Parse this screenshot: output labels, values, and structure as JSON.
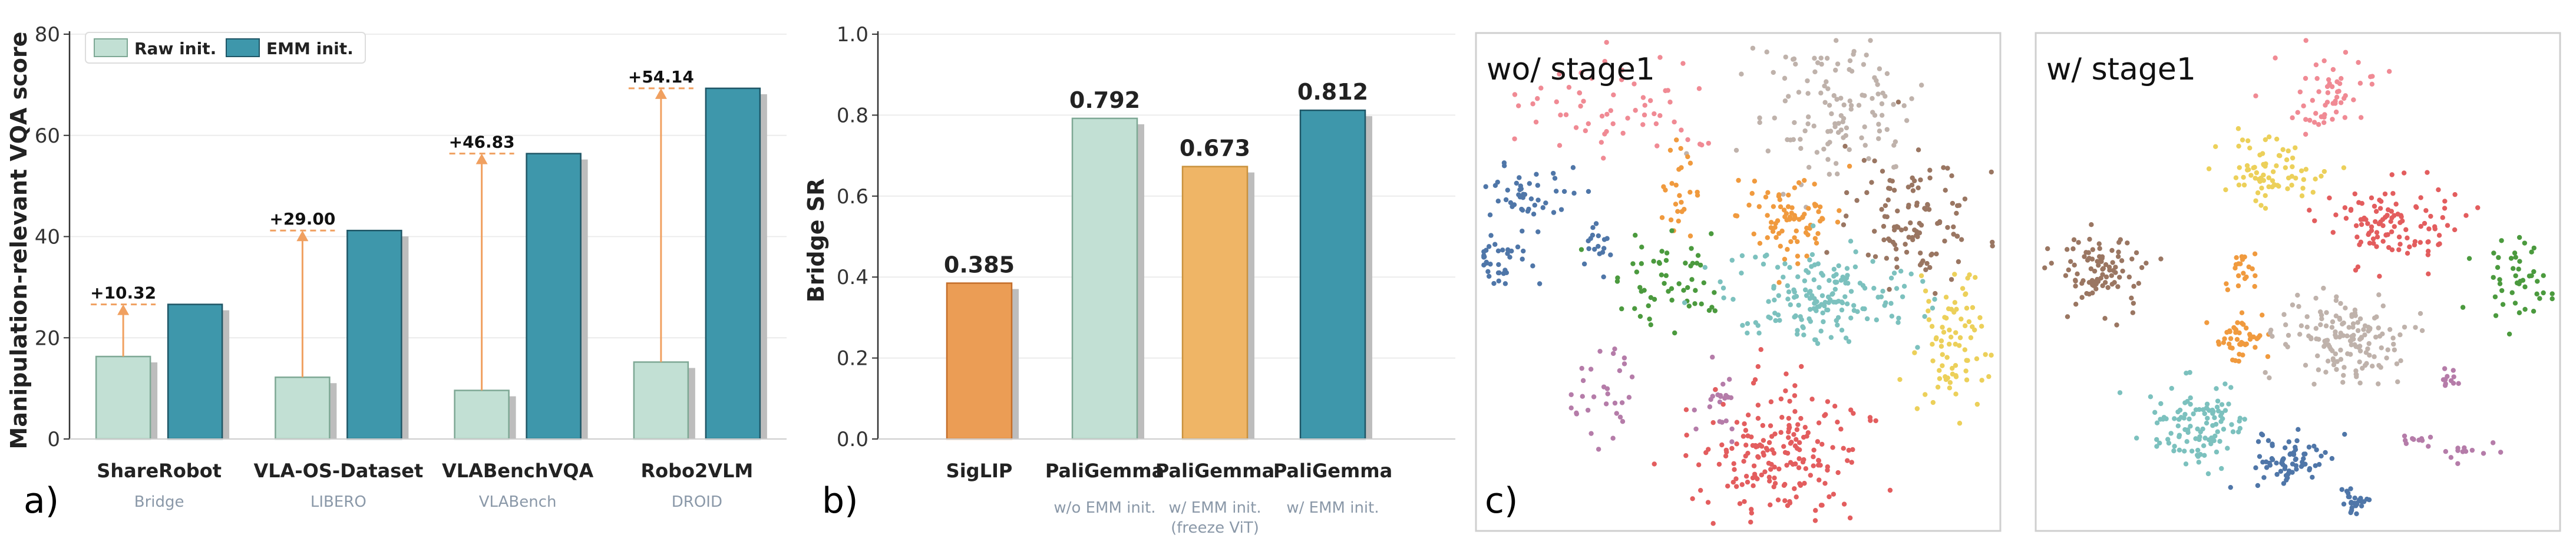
{
  "colors": {
    "raw": "#c2e0d4",
    "raw_edge": "#7ea895",
    "emm": "#3e97ab",
    "emm_edge": "#1f5666",
    "siglip": "#eb9d55",
    "siglip_edge": "#c46e2a",
    "freeze": "#efb566",
    "freeze_edge": "#c9913d",
    "arrow": "#f0a060",
    "shadow": "#bdbdbd"
  },
  "chart_data": [
    {
      "type": "bar",
      "panel_label": "a)",
      "ylabel": "Manipulation-relevant VQA score",
      "ylim": [
        0,
        80
      ],
      "yticks": [
        "0",
        "20",
        "40",
        "60",
        "80"
      ],
      "grid": true,
      "legend": {
        "position": "top-left",
        "entries": [
          "Raw init.",
          "EMM init."
        ]
      },
      "categories": [
        "ShareRobot",
        "VLA-OS-Dataset",
        "VLABenchVQA",
        "Robo2VLM"
      ],
      "subtitles": [
        "Bridge",
        "LIBERO",
        "VLABench",
        "DROID"
      ],
      "series": [
        {
          "name": "Raw init.",
          "values": [
            16.3,
            12.2,
            9.6,
            15.2
          ]
        },
        {
          "name": "EMM init.",
          "values": [
            26.6,
            41.2,
            56.4,
            69.3
          ]
        }
      ],
      "deltas": [
        "+10.32",
        "+29.00",
        "+46.83",
        "+54.14"
      ]
    },
    {
      "type": "bar",
      "panel_label": "b)",
      "ylabel": "Bridge SR",
      "ylim": [
        0,
        1.0
      ],
      "yticks": [
        "0.0",
        "0.2",
        "0.4",
        "0.6",
        "0.8",
        "1.0"
      ],
      "grid": true,
      "categories": [
        "SigLIP",
        "PaliGemma",
        "PaliGemma",
        "PaliGemma"
      ],
      "subtitles": [
        "",
        "w/o EMM init.",
        "w/ EMM init.",
        "w/ EMM init."
      ],
      "subtitles2": [
        "",
        "",
        "(freeze ViT)",
        ""
      ],
      "values": [
        0.385,
        0.792,
        0.673,
        0.812
      ],
      "value_labels": [
        "0.385",
        "0.792",
        "0.673",
        "0.812"
      ]
    },
    {
      "type": "scatter",
      "panel_label": "c)",
      "panels": [
        {
          "title": "wo/ stage1",
          "clusters": [
            {
              "color": "#f08a94",
              "cx": 0.28,
              "cy": 0.15,
              "sx": 0.1,
              "sy": 0.05,
              "n": 60
            },
            {
              "color": "#bfb2ab",
              "cx": 0.68,
              "cy": 0.15,
              "sx": 0.08,
              "sy": 0.08,
              "n": 120
            },
            {
              "color": "#4f76a8",
              "cx": 0.09,
              "cy": 0.33,
              "sx": 0.035,
              "sy": 0.03,
              "n": 45
            },
            {
              "color": "#4f76a8",
              "cx": 0.05,
              "cy": 0.46,
              "sx": 0.035,
              "sy": 0.025,
              "n": 35
            },
            {
              "color": "#4f76a8",
              "cx": 0.23,
              "cy": 0.42,
              "sx": 0.015,
              "sy": 0.03,
              "n": 18
            },
            {
              "color": "#f09a3e",
              "cx": 0.39,
              "cy": 0.32,
              "sx": 0.02,
              "sy": 0.04,
              "n": 25
            },
            {
              "color": "#f09a3e",
              "cx": 0.6,
              "cy": 0.37,
              "sx": 0.05,
              "sy": 0.04,
              "n": 80
            },
            {
              "color": "#4b9a3e",
              "cx": 0.36,
              "cy": 0.48,
              "sx": 0.06,
              "sy": 0.05,
              "n": 55
            },
            {
              "color": "#9a7662",
              "cx": 0.84,
              "cy": 0.38,
              "sx": 0.06,
              "sy": 0.06,
              "n": 110
            },
            {
              "color": "#7cc1be",
              "cx": 0.66,
              "cy": 0.53,
              "sx": 0.09,
              "sy": 0.05,
              "n": 170
            },
            {
              "color": "#ecd05a",
              "cx": 0.9,
              "cy": 0.62,
              "sx": 0.035,
              "sy": 0.07,
              "n": 80
            },
            {
              "color": "#b57ca9",
              "cx": 0.24,
              "cy": 0.73,
              "sx": 0.03,
              "sy": 0.06,
              "n": 30
            },
            {
              "color": "#b57ca9",
              "cx": 0.46,
              "cy": 0.74,
              "sx": 0.02,
              "sy": 0.04,
              "n": 22
            },
            {
              "color": "#e35d5e",
              "cx": 0.58,
              "cy": 0.84,
              "sx": 0.08,
              "sy": 0.065,
              "n": 190
            }
          ]
        },
        {
          "title": "w/ stage1",
          "clusters": [
            {
              "color": "#f08a94",
              "cx": 0.57,
              "cy": 0.12,
              "sx": 0.04,
              "sy": 0.04,
              "n": 55
            },
            {
              "color": "#ecd05a",
              "cx": 0.45,
              "cy": 0.28,
              "sx": 0.05,
              "sy": 0.03,
              "n": 75
            },
            {
              "color": "#e35d5e",
              "cx": 0.68,
              "cy": 0.38,
              "sx": 0.06,
              "sy": 0.04,
              "n": 110
            },
            {
              "color": "#9a7662",
              "cx": 0.12,
              "cy": 0.47,
              "sx": 0.04,
              "sy": 0.04,
              "n": 95
            },
            {
              "color": "#4b9a3e",
              "cx": 0.92,
              "cy": 0.5,
              "sx": 0.035,
              "sy": 0.04,
              "n": 45
            },
            {
              "color": "#f09a3e",
              "cx": 0.39,
              "cy": 0.48,
              "sx": 0.015,
              "sy": 0.02,
              "n": 20
            },
            {
              "color": "#f09a3e",
              "cx": 0.39,
              "cy": 0.62,
              "sx": 0.025,
              "sy": 0.025,
              "n": 45
            },
            {
              "color": "#bfb2ab",
              "cx": 0.58,
              "cy": 0.61,
              "sx": 0.055,
              "sy": 0.045,
              "n": 150
            },
            {
              "color": "#7cc1be",
              "cx": 0.31,
              "cy": 0.79,
              "sx": 0.045,
              "sy": 0.045,
              "n": 110
            },
            {
              "color": "#4f76a8",
              "cx": 0.49,
              "cy": 0.86,
              "sx": 0.035,
              "sy": 0.025,
              "n": 70
            },
            {
              "color": "#4f76a8",
              "cx": 0.61,
              "cy": 0.94,
              "sx": 0.015,
              "sy": 0.015,
              "n": 28
            },
            {
              "color": "#b57ca9",
              "cx": 0.79,
              "cy": 0.7,
              "sx": 0.01,
              "sy": 0.012,
              "n": 12
            },
            {
              "color": "#b57ca9",
              "cx": 0.72,
              "cy": 0.82,
              "sx": 0.012,
              "sy": 0.01,
              "n": 10
            },
            {
              "color": "#b57ca9",
              "cx": 0.82,
              "cy": 0.84,
              "sx": 0.03,
              "sy": 0.01,
              "n": 12
            }
          ]
        }
      ]
    }
  ]
}
